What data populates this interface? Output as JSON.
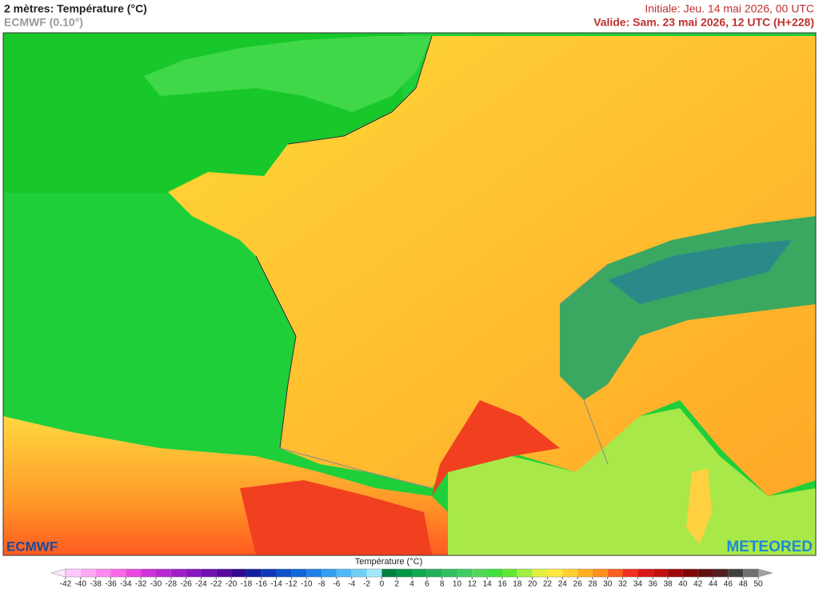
{
  "header": {
    "title": "2 mètres: Température (°C)",
    "model": "ECMWF (0.10°)",
    "initial": "Initiale: Jeu. 14 mai 2026, 00 UTC",
    "valid": "Valide: Sam. 23 mai 2026, 12 UTC (H+228)"
  },
  "logos": {
    "left": "ECMWF",
    "right": "METEORED"
  },
  "legend": {
    "title": "Température (°C)",
    "ticks": [
      -42,
      -40,
      -38,
      -36,
      -34,
      -32,
      -30,
      -28,
      -26,
      -24,
      -22,
      -20,
      -18,
      -16,
      -14,
      -12,
      -10,
      -8,
      -6,
      -4,
      -2,
      0,
      2,
      4,
      6,
      8,
      10,
      12,
      14,
      16,
      18,
      20,
      22,
      24,
      26,
      28,
      30,
      32,
      34,
      36,
      38,
      40,
      42,
      44,
      46,
      48,
      50
    ],
    "colors": [
      "#ffc8ff",
      "#ffa8f8",
      "#ff88f0",
      "#f868e8",
      "#e848e0",
      "#d030d8",
      "#b828d0",
      "#a020c8",
      "#8818c0",
      "#7010b0",
      "#5808a0",
      "#300890",
      "#1020a0",
      "#1038b8",
      "#1050c8",
      "#1068d8",
      "#2080e8",
      "#30a0f0",
      "#50b8f8",
      "#70d0f8",
      "#a0e8ff",
      "#008040",
      "#009848",
      "#10a850",
      "#20b058",
      "#30c060",
      "#40cc60",
      "#50d858",
      "#40e040",
      "#60e830",
      "#a0f040",
      "#e0f040",
      "#ffe840",
      "#ffd030",
      "#ffb020",
      "#ff9020",
      "#ff6020",
      "#f03020",
      "#d81818",
      "#c01010",
      "#a00808",
      "#800808",
      "#601010",
      "#502020",
      "#404040",
      "#707070"
    ]
  }
}
